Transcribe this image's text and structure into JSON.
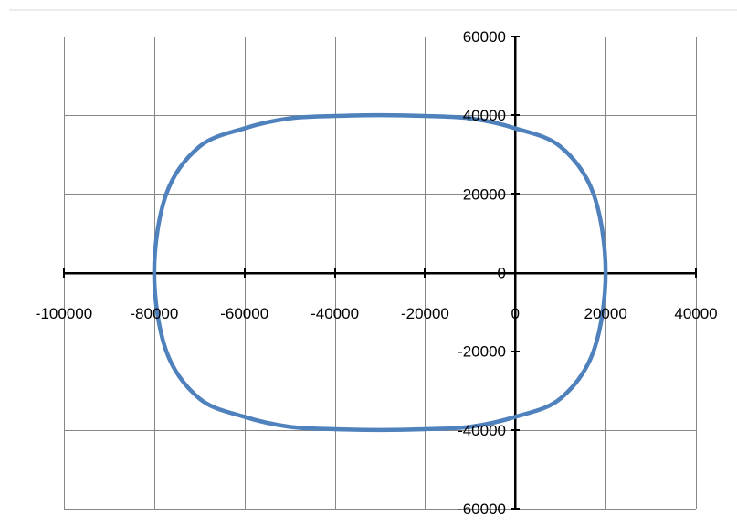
{
  "chart_data": {
    "type": "scatter",
    "title": "",
    "xlabel": "",
    "ylabel": "",
    "xlim": [
      -100000,
      40000
    ],
    "ylim": [
      -60000,
      60000
    ],
    "x_major_unit": 20000,
    "y_major_unit": 20000,
    "grid": true,
    "legend": "none",
    "x_ticks": [
      "-100000",
      "-80000",
      "-60000",
      "-40000",
      "-20000",
      "0",
      "20000",
      "40000"
    ],
    "y_ticks": [
      "60000",
      "40000",
      "20000",
      "0",
      "-20000",
      "-40000",
      "-60000"
    ],
    "series": [
      {
        "color": "#4f81bd",
        "style": "smooth line, no markers",
        "x": [
          20000,
          17320,
          10000,
          0,
          -10000,
          -20000,
          -30000,
          -40000,
          -50000,
          -60000,
          -70000,
          -77320,
          -80000,
          -77320,
          -70000,
          -60000,
          -50000,
          -40000,
          -30000,
          -20000,
          -10000,
          0,
          10000,
          17320,
          20000
        ],
        "y": [
          0,
          20000,
          32000,
          36660,
          39190,
          39800,
          40000,
          39800,
          39190,
          36660,
          32000,
          20000,
          0,
          -20000,
          -32000,
          -36660,
          -39190,
          -39800,
          -40000,
          -39800,
          -39190,
          -36660,
          -32000,
          -20000,
          0
        ]
      }
    ]
  }
}
